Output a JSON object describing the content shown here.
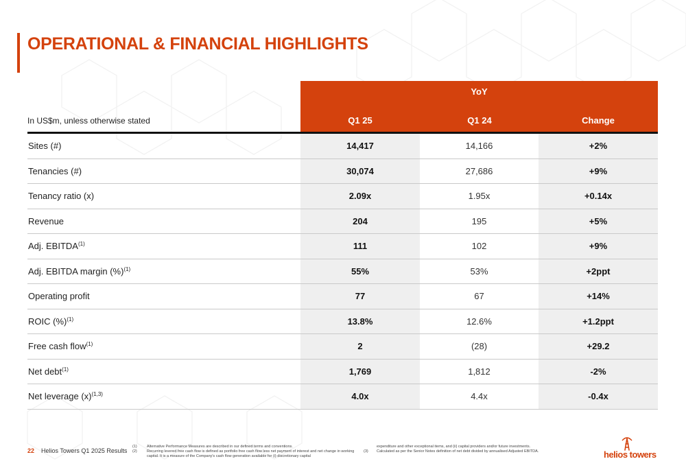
{
  "page": {
    "title": "OPERATIONAL & FINANCIAL HIGHLIGHTS"
  },
  "table": {
    "unit_label": "In US$m, unless otherwise stated",
    "group_header": "YoY",
    "columns": [
      "Q1 25",
      "Q1 24",
      "Change"
    ],
    "rows": [
      {
        "label": "Sites (#)",
        "sup": "",
        "q1_25": "14,417",
        "q1_24": "14,166",
        "change": "+2%"
      },
      {
        "label": "Tenancies (#)",
        "sup": "",
        "q1_25": "30,074",
        "q1_24": "27,686",
        "change": "+9%"
      },
      {
        "label": "Tenancy ratio (x)",
        "sup": "",
        "q1_25": "2.09x",
        "q1_24": "1.95x",
        "change": "+0.14x"
      },
      {
        "label": "Revenue",
        "sup": "",
        "q1_25": "204",
        "q1_24": "195",
        "change": "+5%"
      },
      {
        "label": "Adj. EBITDA",
        "sup": "(1)",
        "q1_25": "111",
        "q1_24": "102",
        "change": "+9%"
      },
      {
        "label": "Adj. EBITDA margin (%)",
        "sup": "(1)",
        "q1_25": "55%",
        "q1_24": "53%",
        "change": "+2ppt"
      },
      {
        "label": "Operating profit",
        "sup": "",
        "q1_25": "77",
        "q1_24": "67",
        "change": "+14%"
      },
      {
        "label": "ROIC (%)",
        "sup": "(1)",
        "q1_25": "13.8%",
        "q1_24": "12.6%",
        "change": "+1.2ppt"
      },
      {
        "label": "Free cash flow",
        "sup": "(1)",
        "q1_25": "2",
        "q1_24": "(28)",
        "change": "+29.2"
      },
      {
        "label": "Net debt",
        "sup": "(1)",
        "q1_25": "1,769",
        "q1_24": "1,812",
        "change": "-2%"
      },
      {
        "label": "Net leverage (x)",
        "sup": "(1,3)",
        "q1_25": "4.0x",
        "q1_24": "4.4x",
        "change": "-0.4x"
      }
    ]
  },
  "footer": {
    "page_number": "22",
    "label": "Helios Towers Q1 2025 Results",
    "footnotes": {
      "n1": "(1)",
      "t1": "Alternative Performance Measures are described in our defined terms and conventions.",
      "n2": "(2)",
      "t2": "Recurring levered free cash flow is defined as portfolio free cash flow less net payment of interest and net change in working capital. It is a measure of the Company's cash flow generation available for (i) discretionary capital",
      "t2_cont": "expenditure and other exceptional items, and (ii) capital providers and/or future investments.",
      "n3": "(3)",
      "t3": "Calculated as per the Senior Notes definition of net debt divided by annualised Adjusted EBITDA."
    },
    "logo_text": "helios towers"
  },
  "colors": {
    "accent": "#d4420d",
    "shaded_column": "#efefef",
    "rule": "#111111"
  },
  "icons": {
    "logo": "helios-tower-mast-icon"
  }
}
